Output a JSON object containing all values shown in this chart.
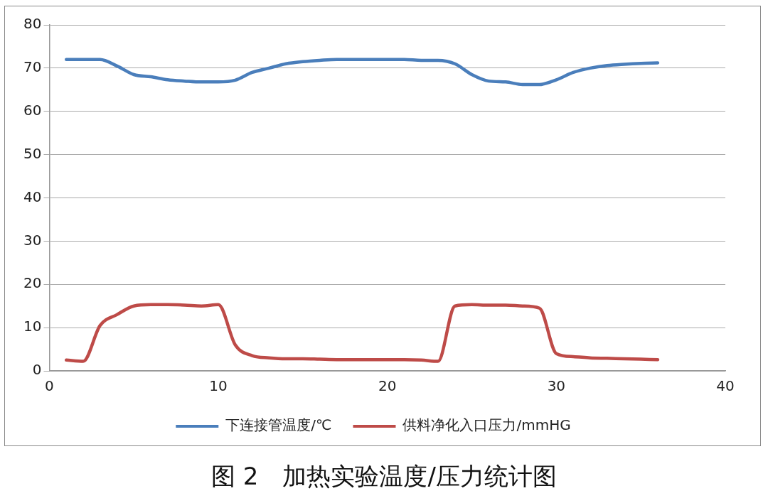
{
  "chart_data": {
    "type": "line",
    "title": "图 2　加热实验温度/压力统计图",
    "x": [
      1,
      2,
      3,
      4,
      5,
      6,
      7,
      8,
      9,
      10,
      11,
      12,
      13,
      14,
      15,
      16,
      17,
      18,
      19,
      20,
      21,
      22,
      23,
      24,
      25,
      26,
      27,
      28,
      29,
      30,
      31,
      32,
      33,
      34,
      35,
      36
    ],
    "series": [
      {
        "name": "下连接管温度/℃",
        "color": "#4a7ebb",
        "values": [
          72,
          72,
          72,
          70.5,
          68.5,
          68,
          67.3,
          67,
          66.8,
          66.8,
          67.2,
          69,
          70,
          71,
          71.5,
          71.8,
          72,
          72,
          72,
          72,
          72,
          71.8,
          71.8,
          71,
          68.5,
          67,
          66.8,
          66.2,
          66.2,
          67.3,
          69,
          70,
          70.6,
          70.9,
          71.1,
          71.2
        ]
      },
      {
        "name": "供料净化入口压力/mmHG",
        "color": "#be4b48",
        "values": [
          2.5,
          2.2,
          10.5,
          13,
          15,
          15.3,
          15.3,
          15.2,
          15,
          15.3,
          6,
          3.5,
          3,
          2.8,
          2.8,
          2.7,
          2.6,
          2.6,
          2.6,
          2.6,
          2.6,
          2.5,
          2.2,
          15,
          15.3,
          15.2,
          15.2,
          15,
          14.5,
          4,
          3.3,
          3,
          2.9,
          2.8,
          2.7,
          2.6
        ]
      }
    ],
    "xlim": [
      0,
      40
    ],
    "xticks": [
      0,
      10,
      20,
      30,
      40
    ],
    "ylim": [
      0,
      80
    ],
    "yticks": [
      0,
      10,
      20,
      30,
      40,
      50,
      60,
      70,
      80
    ],
    "grid": "y",
    "legend": "bottom",
    "marker": "none",
    "line_style": "solid"
  }
}
